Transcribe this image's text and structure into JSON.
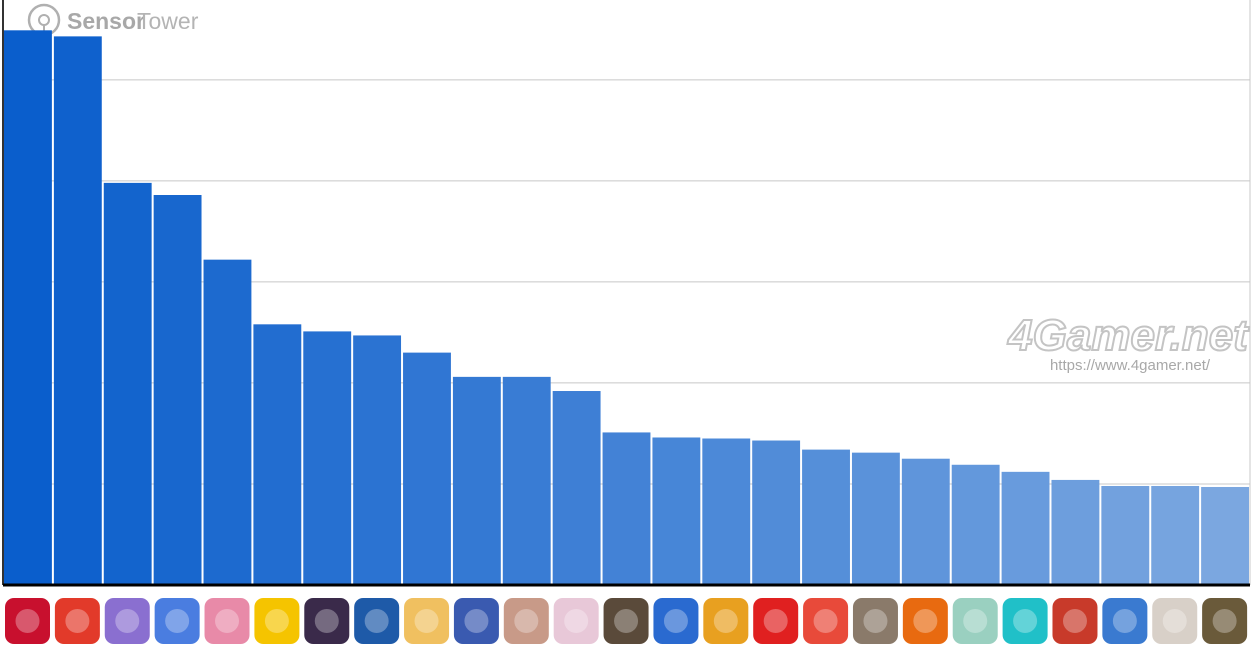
{
  "chart_data": {
    "type": "bar",
    "categories": [
      null,
      null,
      null,
      null,
      null,
      null,
      null,
      null,
      null,
      null,
      null,
      null,
      null,
      null,
      null,
      null,
      null,
      null,
      null,
      null,
      null,
      null,
      null,
      null,
      null
    ],
    "values": [
      5.49,
      5.43,
      3.98,
      3.86,
      3.22,
      2.58,
      2.51,
      2.47,
      2.3,
      2.06,
      2.06,
      1.92,
      1.51,
      1.46,
      1.45,
      1.43,
      1.34,
      1.31,
      1.25,
      1.19,
      1.12,
      1.04,
      0.98,
      0.98,
      0.97
    ],
    "colors": [
      "#0a5ecc",
      "#0f61cd",
      "#1364cd",
      "#1867ce",
      "#1d6acf",
      "#226dd0",
      "#2670d1",
      "#2b73d2",
      "#3076d3",
      "#3479d3",
      "#397cd4",
      "#3e7fd5",
      "#4382d6",
      "#4786d7",
      "#4c89d8",
      "#518cd8",
      "#558fd9",
      "#5a92da",
      "#5f95db",
      "#6398dc",
      "#689bdd",
      "#6d9edd",
      "#72a1de",
      "#76a4df",
      "#7ba7e0"
    ],
    "ylim": [
      0,
      5.79
    ],
    "yticks": [
      0,
      1,
      2,
      3,
      4,
      5
    ],
    "grid": true
  },
  "logo": {
    "brand_bold": "Sensor",
    "brand_light": "Tower"
  },
  "watermark": {
    "title": "4Gamer.net",
    "url": "https://www.4gamer.net/"
  }
}
